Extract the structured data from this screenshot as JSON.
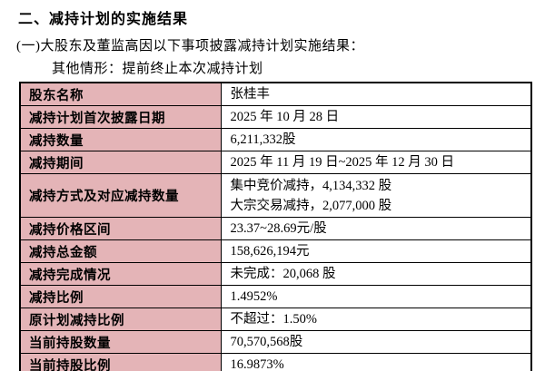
{
  "page": {
    "title": "二、减持计划的实施结果",
    "subtitle": "(一)大股东及董监高因以下事项披露减持计划实施结果：",
    "scenario": "其他情形：提前终止本次减持计划"
  },
  "table": {
    "label_bg_color": "#E4B4B7",
    "border_color": "#000000",
    "rows": [
      {
        "label": "股东名称",
        "value": "张桂丰"
      },
      {
        "label": "减持计划首次披露日期",
        "value": "2025 年 10 月 28 日"
      },
      {
        "label": "减持数量",
        "value": "6,211,332股"
      },
      {
        "label": "减持期间",
        "value": "2025 年 11 月 19 日~2025 年 12 月 30 日"
      },
      {
        "label": "减持方式及对应减持数量",
        "value": "集中竞价减持，4,134,332 股\n大宗交易减持，2,077,000 股"
      },
      {
        "label": "减持价格区间",
        "value": "23.37~28.69元/股"
      },
      {
        "label": "减持总金额",
        "value": "158,626,194元"
      },
      {
        "label": "减持完成情况",
        "value": "未完成：20,068 股"
      },
      {
        "label": "减持比例",
        "value": "1.4952%"
      },
      {
        "label": "原计划减持比例",
        "value": "不超过：1.50%"
      },
      {
        "label": "当前持股数量",
        "value": "70,570,568股"
      },
      {
        "label": "当前持股比例",
        "value": "16.9873%"
      }
    ]
  }
}
